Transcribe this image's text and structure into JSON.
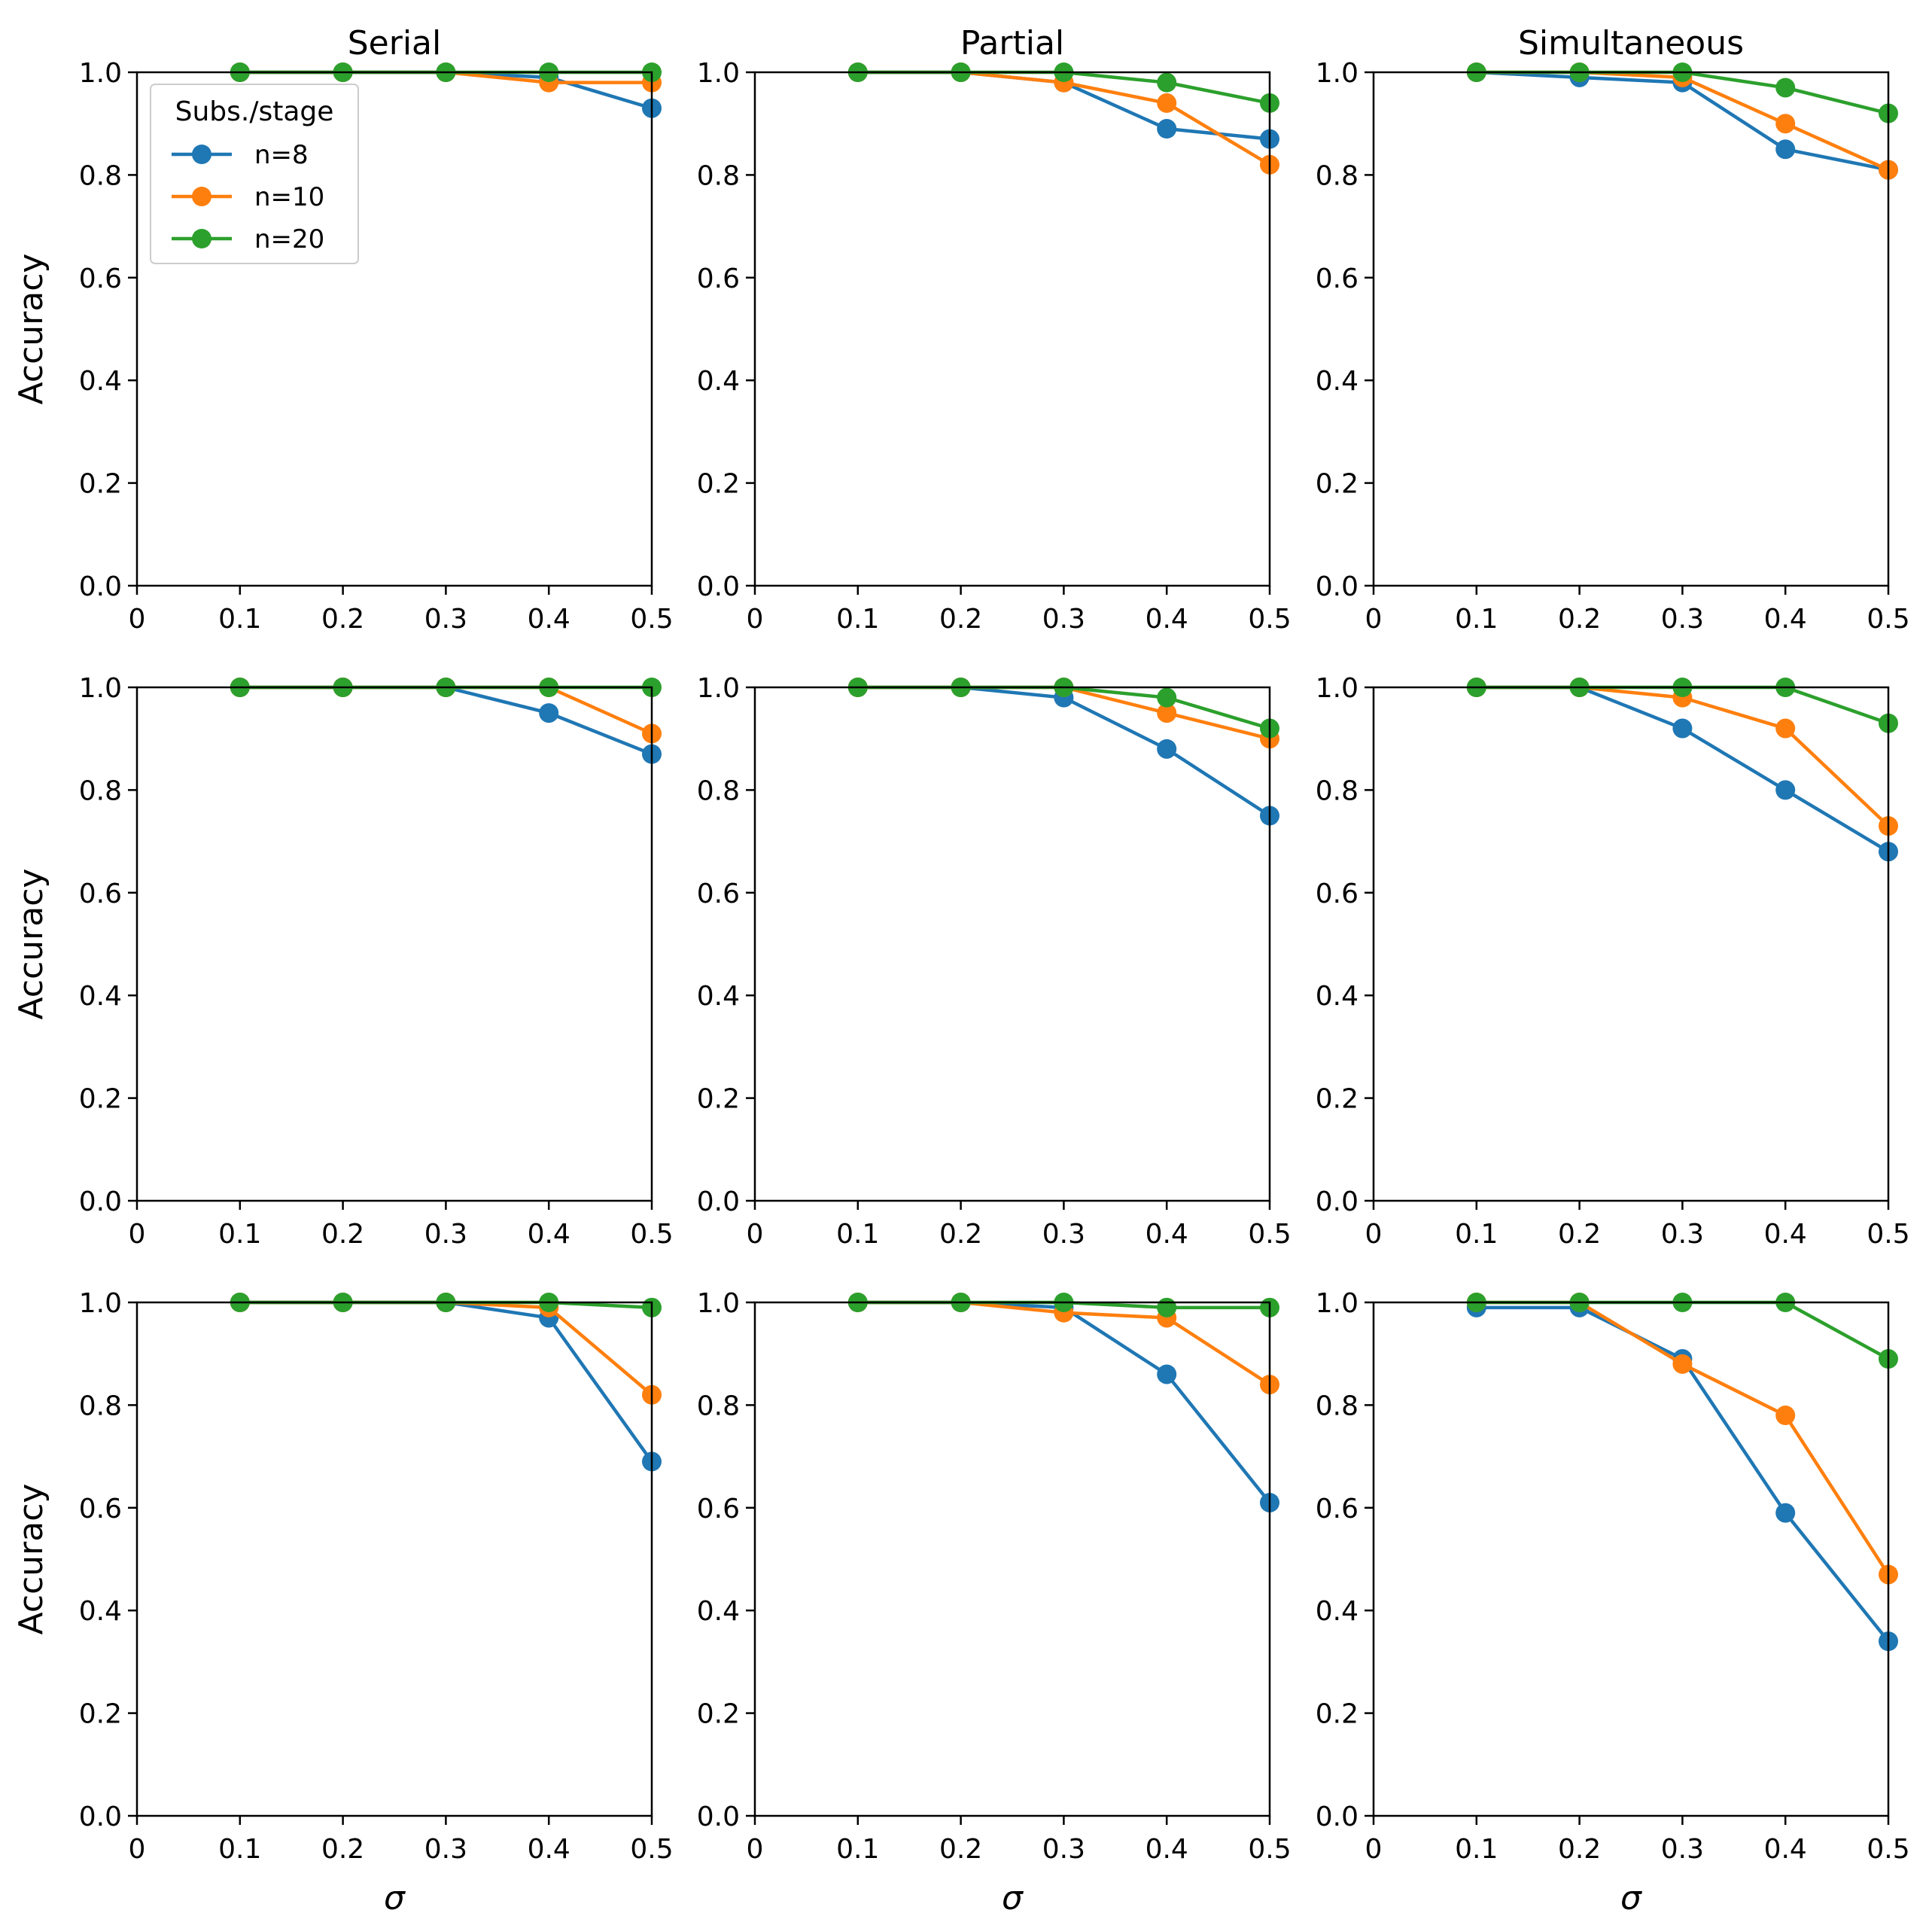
{
  "colors": {
    "n8": "#1f77b4",
    "n10": "#ff7f0e",
    "n20": "#2ca02c"
  },
  "legend": {
    "title": "Subs./stage",
    "entries": [
      {
        "label": "n=8",
        "color": "#1f77b4"
      },
      {
        "label": "n=10",
        "color": "#ff7f0e"
      },
      {
        "label": "n=20",
        "color": "#2ca02c"
      }
    ]
  },
  "chart_data": {
    "type": "line",
    "x": [
      0.1,
      0.2,
      0.3,
      0.4,
      0.5
    ],
    "xlim": [
      0,
      0.5
    ],
    "ylim": [
      0,
      1.0
    ],
    "xticks": [
      "0",
      "0.1",
      "0.2",
      "0.3",
      "0.4",
      "0.5"
    ],
    "yticks": [
      "0.0",
      "0.2",
      "0.4",
      "0.6",
      "0.8",
      "1.0"
    ],
    "column_titles": [
      "Serial",
      "Partial",
      "Simultaneous"
    ],
    "ylabel": "Accuracy",
    "xlabel": "σ",
    "panels": [
      {
        "row": 0,
        "col": 0,
        "title": "Serial",
        "series": [
          {
            "name": "n=8",
            "values": [
              1.0,
              1.0,
              1.0,
              0.99,
              0.93
            ]
          },
          {
            "name": "n=10",
            "values": [
              1.0,
              1.0,
              1.0,
              0.98,
              0.98
            ]
          },
          {
            "name": "n=20",
            "values": [
              1.0,
              1.0,
              1.0,
              1.0,
              1.0
            ]
          }
        ]
      },
      {
        "row": 0,
        "col": 1,
        "title": "Partial",
        "series": [
          {
            "name": "n=8",
            "values": [
              1.0,
              1.0,
              0.98,
              0.89,
              0.87
            ]
          },
          {
            "name": "n=10",
            "values": [
              1.0,
              1.0,
              0.98,
              0.94,
              0.82
            ]
          },
          {
            "name": "n=20",
            "values": [
              1.0,
              1.0,
              1.0,
              0.98,
              0.94
            ]
          }
        ]
      },
      {
        "row": 0,
        "col": 2,
        "title": "Simultaneous",
        "series": [
          {
            "name": "n=8",
            "values": [
              1.0,
              0.99,
              0.98,
              0.85,
              0.81
            ]
          },
          {
            "name": "n=10",
            "values": [
              1.0,
              1.0,
              0.99,
              0.9,
              0.81
            ]
          },
          {
            "name": "n=20",
            "values": [
              1.0,
              1.0,
              1.0,
              0.97,
              0.92
            ]
          }
        ]
      },
      {
        "row": 1,
        "col": 0,
        "title": "",
        "series": [
          {
            "name": "n=8",
            "values": [
              1.0,
              1.0,
              1.0,
              0.95,
              0.87
            ]
          },
          {
            "name": "n=10",
            "values": [
              1.0,
              1.0,
              1.0,
              1.0,
              0.91
            ]
          },
          {
            "name": "n=20",
            "values": [
              1.0,
              1.0,
              1.0,
              1.0,
              1.0
            ]
          }
        ]
      },
      {
        "row": 1,
        "col": 1,
        "title": "",
        "series": [
          {
            "name": "n=8",
            "values": [
              1.0,
              1.0,
              0.98,
              0.88,
              0.75
            ]
          },
          {
            "name": "n=10",
            "values": [
              1.0,
              1.0,
              1.0,
              0.95,
              0.9
            ]
          },
          {
            "name": "n=20",
            "values": [
              1.0,
              1.0,
              1.0,
              0.98,
              0.92
            ]
          }
        ]
      },
      {
        "row": 1,
        "col": 2,
        "title": "",
        "series": [
          {
            "name": "n=8",
            "values": [
              1.0,
              1.0,
              0.92,
              0.8,
              0.68
            ]
          },
          {
            "name": "n=10",
            "values": [
              1.0,
              1.0,
              0.98,
              0.92,
              0.73
            ]
          },
          {
            "name": "n=20",
            "values": [
              1.0,
              1.0,
              1.0,
              1.0,
              0.93
            ]
          }
        ]
      },
      {
        "row": 2,
        "col": 0,
        "title": "",
        "series": [
          {
            "name": "n=8",
            "values": [
              1.0,
              1.0,
              1.0,
              0.97,
              0.69
            ]
          },
          {
            "name": "n=10",
            "values": [
              1.0,
              1.0,
              1.0,
              0.99,
              0.82
            ]
          },
          {
            "name": "n=20",
            "values": [
              1.0,
              1.0,
              1.0,
              1.0,
              0.99
            ]
          }
        ]
      },
      {
        "row": 2,
        "col": 1,
        "title": "",
        "series": [
          {
            "name": "n=8",
            "values": [
              1.0,
              1.0,
              0.99,
              0.86,
              0.61
            ]
          },
          {
            "name": "n=10",
            "values": [
              1.0,
              1.0,
              0.98,
              0.97,
              0.84
            ]
          },
          {
            "name": "n=20",
            "values": [
              1.0,
              1.0,
              1.0,
              0.99,
              0.99
            ]
          }
        ]
      },
      {
        "row": 2,
        "col": 2,
        "title": "",
        "series": [
          {
            "name": "n=8",
            "values": [
              0.99,
              0.99,
              0.89,
              0.59,
              0.34
            ]
          },
          {
            "name": "n=10",
            "values": [
              1.0,
              1.0,
              0.88,
              0.78,
              0.47
            ]
          },
          {
            "name": "n=20",
            "values": [
              1.0,
              1.0,
              1.0,
              1.0,
              0.89
            ]
          }
        ]
      }
    ]
  }
}
